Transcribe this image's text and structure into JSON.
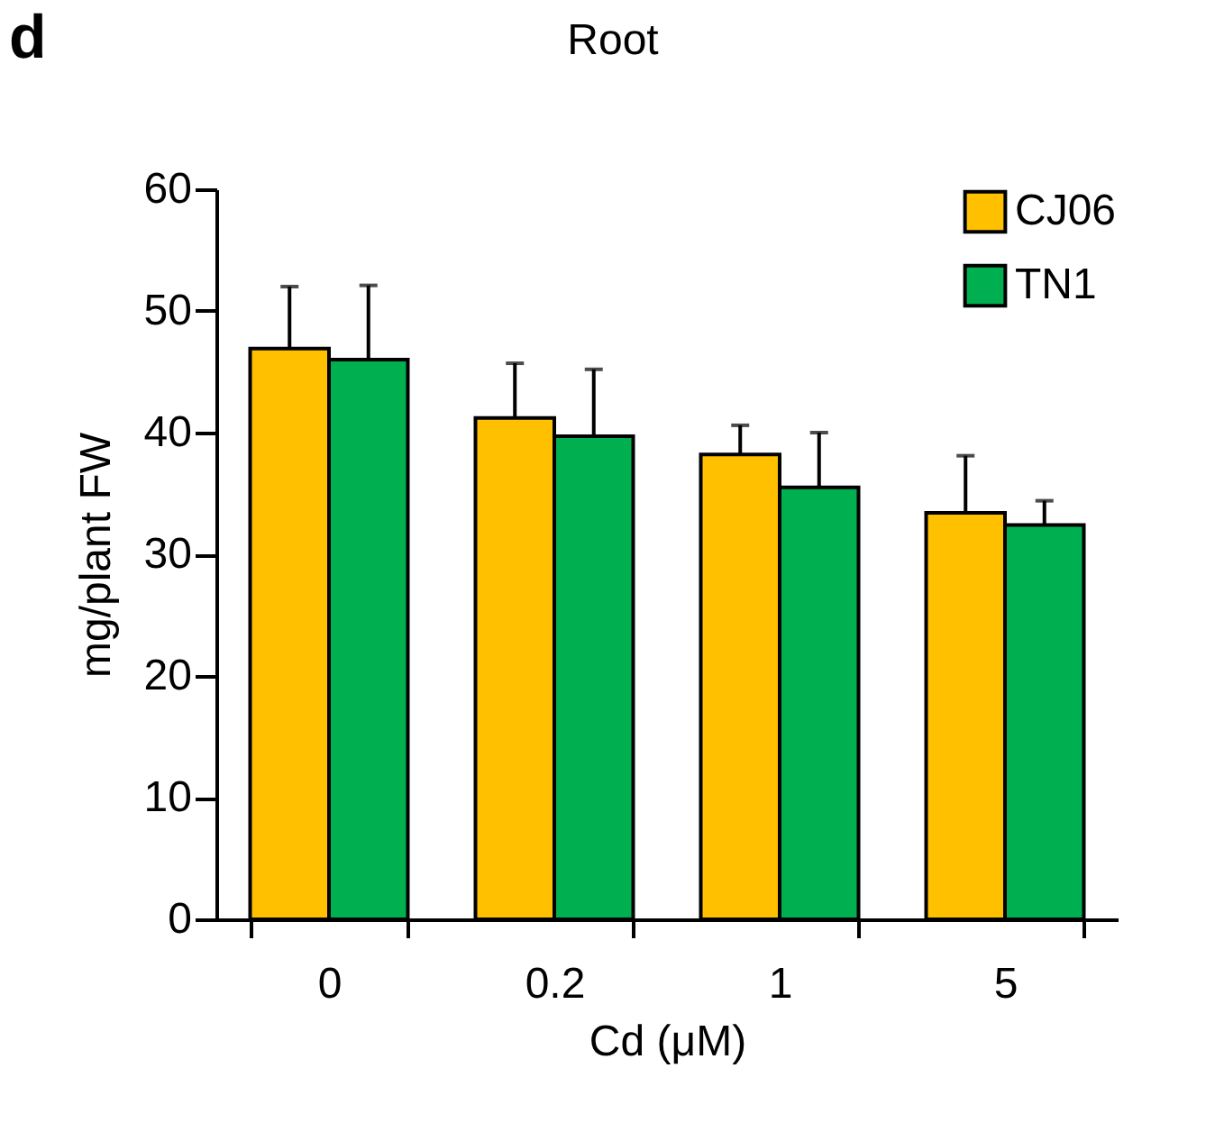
{
  "chart_data": {
    "type": "bar",
    "title": "Root",
    "xlabel": "Cd (μM)",
    "ylabel": "mg/plant  FW",
    "categories": [
      "0",
      "0.2",
      "1",
      "5"
    ],
    "series": [
      {
        "name": "CJ06",
        "color": "#ffc000",
        "values": [
          46.9,
          41.2,
          38.2,
          33.4
        ],
        "errors": [
          [
            46.9,
            52.0
          ],
          [
            41.2,
            45.7
          ],
          [
            38.2,
            40.6
          ],
          [
            33.4,
            38.1
          ]
        ]
      },
      {
        "name": "TN1",
        "color": "#00b050",
        "values": [
          46.0,
          39.7,
          35.5,
          32.4
        ],
        "errors": [
          [
            46.0,
            52.1
          ],
          [
            39.7,
            45.2
          ],
          [
            35.5,
            40.0
          ],
          [
            32.4,
            34.4
          ]
        ]
      }
    ],
    "ylim": [
      0,
      60
    ],
    "yticks": [
      0,
      10,
      20,
      30,
      40,
      50,
      60
    ],
    "grid": false,
    "legend": "top right",
    "annotations": [
      "d"
    ]
  }
}
